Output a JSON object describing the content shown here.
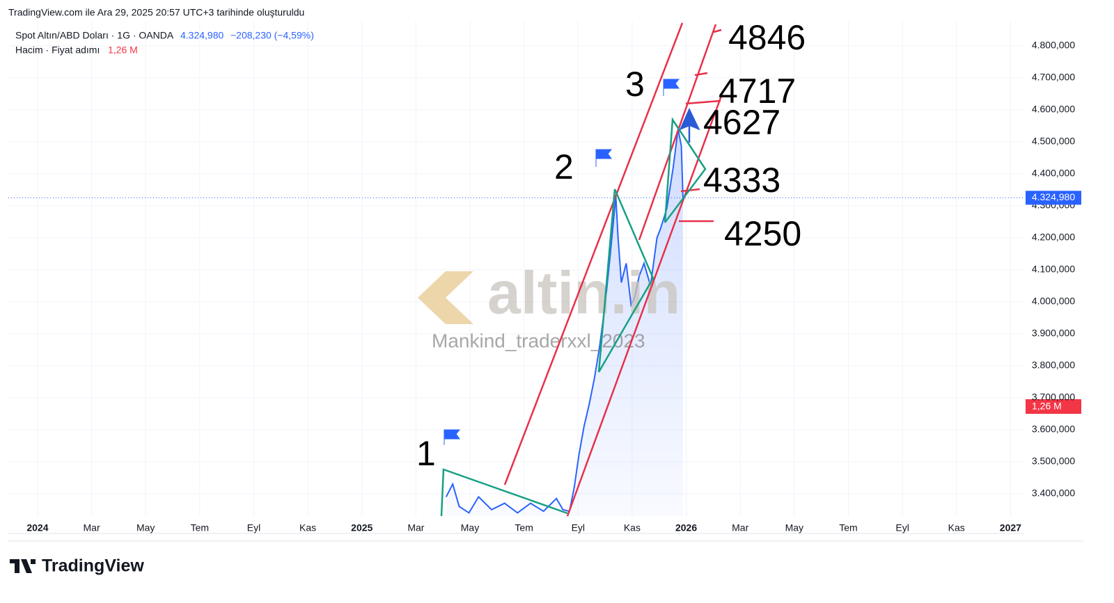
{
  "header": {
    "caption": "TradingView.com ile Ara 29, 2025 20:57 UTC+3 tarihinde oluşturuldu"
  },
  "chart_data": {
    "type": "line",
    "series": [
      {
        "name": "Spot Altın/ABD Doları · 1G · OANDA",
        "color": "#2962ff",
        "x": [
          2025.26,
          2025.28,
          2025.3,
          2025.33,
          2025.36,
          2025.4,
          2025.44,
          2025.48,
          2025.52,
          2025.56,
          2025.6,
          2025.62,
          2025.64,
          2025.655,
          2025.669,
          2025.685,
          2025.701,
          2025.717,
          2025.733,
          2025.75,
          2025.766,
          2025.783,
          2025.79,
          2025.8,
          2025.815,
          2025.83,
          2025.84,
          2025.855,
          2025.87,
          2025.89,
          2025.91,
          2025.92,
          2025.94,
          2025.96,
          2025.975,
          2025.985,
          2025.99
        ],
        "values": [
          3390,
          3430,
          3360,
          3340,
          3390,
          3350,
          3370,
          3340,
          3370,
          3345,
          3385,
          3350,
          3345,
          3420,
          3520,
          3610,
          3680,
          3760,
          3860,
          3990,
          4150,
          4330,
          4200,
          4060,
          4120,
          3990,
          4010,
          4080,
          4120,
          4050,
          4200,
          4226,
          4290,
          4420,
          4540,
          4487,
          4325
        ]
      }
    ],
    "last_price": {
      "value": 4324.98,
      "label": "4.324,980"
    },
    "change": "−208,230 (−4,59%)",
    "volume_legend": "Hacim · Fiyat adımı",
    "volume_label": "1,26 M",
    "xlim": [
      2023.91,
      2027.04
    ],
    "xticks": [
      {
        "value": 2024,
        "label": "2024"
      },
      {
        "value": 2024.1667,
        "label": "Mar"
      },
      {
        "value": 2024.3333,
        "label": "May"
      },
      {
        "value": 2024.5,
        "label": "Tem"
      },
      {
        "value": 2024.6667,
        "label": "Eyl"
      },
      {
        "value": 2024.8333,
        "label": "Kas"
      },
      {
        "value": 2025,
        "label": "2025"
      },
      {
        "value": 2025.1667,
        "label": "Mar"
      },
      {
        "value": 2025.3333,
        "label": "May"
      },
      {
        "value": 2025.5,
        "label": "Tem"
      },
      {
        "value": 2025.6667,
        "label": "Eyl"
      },
      {
        "value": 2025.8333,
        "label": "Kas"
      },
      {
        "value": 2026,
        "label": "2026"
      },
      {
        "value": 2026.1667,
        "label": "Mar"
      },
      {
        "value": 2026.3333,
        "label": "May"
      },
      {
        "value": 2026.5,
        "label": "Tem"
      },
      {
        "value": 2026.6667,
        "label": "Eyl"
      },
      {
        "value": 2026.8333,
        "label": "Kas"
      },
      {
        "value": 2027,
        "label": "2027"
      }
    ],
    "ylim": [
      3330,
      4878
    ],
    "yticks": [
      {
        "value": 3400,
        "label": "3.400,000"
      },
      {
        "value": 3500,
        "label": "3.500,000"
      },
      {
        "value": 3600,
        "label": "3.600,000"
      },
      {
        "value": 3700,
        "label": "3.700,000"
      },
      {
        "value": 3800,
        "label": "3.800,000"
      },
      {
        "value": 3900,
        "label": "3.900,000"
      },
      {
        "value": 4000,
        "label": "4.000,000"
      },
      {
        "value": 4100,
        "label": "4.100,000"
      },
      {
        "value": 4200,
        "label": "4.200,000"
      },
      {
        "value": 4300,
        "label": "4.300,000"
      },
      {
        "value": 4400,
        "label": "4.400,000"
      },
      {
        "value": 4500,
        "label": "4.500,000"
      },
      {
        "value": 4600,
        "label": "4.600,000"
      },
      {
        "value": 4700,
        "label": "4.700,000"
      },
      {
        "value": 4800,
        "label": "4.800,000"
      }
    ],
    "grid": true,
    "annotations": [
      "1",
      "2",
      "3",
      "4846",
      "4717",
      "4627",
      "4333",
      "4250"
    ]
  },
  "watermark": {
    "logo": "altin.in",
    "author": "Mankind_traderxxl_2023"
  },
  "footer": {
    "brand": "TradingView"
  }
}
